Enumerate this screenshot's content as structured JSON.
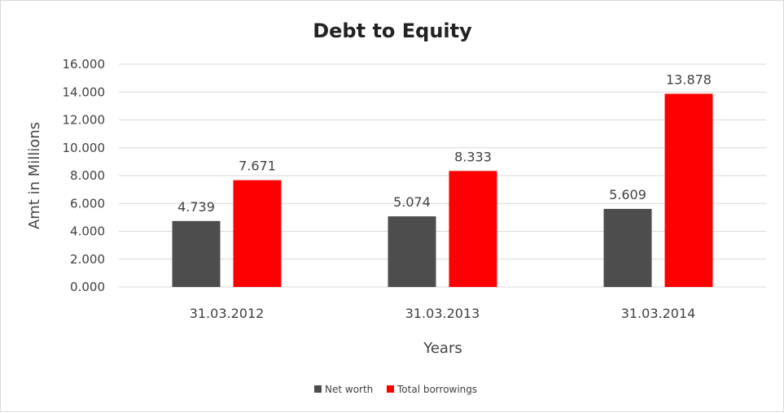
{
  "chart_data": {
    "type": "bar",
    "title": "Debt to Equity",
    "xlabel": "Years",
    "ylabel": "Amt in Millions",
    "categories": [
      "31.03.2012",
      "31.03.2013",
      "31.03.2014"
    ],
    "series": [
      {
        "name": "Net worth",
        "values": [
          4.739,
          5.074,
          5.609
        ],
        "color": "#4d4d4d",
        "labels": [
          "4.739",
          "5.074",
          "5.609"
        ]
      },
      {
        "name": "Total borrowings",
        "values": [
          7.671,
          8.333,
          13.878
        ],
        "color": "#ff0000",
        "labels": [
          "7.671",
          "8.333",
          "13.878"
        ]
      }
    ],
    "ylim": [
      0,
      16
    ],
    "yticks": [
      0,
      2,
      4,
      6,
      8,
      10,
      12,
      14,
      16
    ],
    "ytick_labels": [
      "0.000",
      "2.000",
      "4.000",
      "6.000",
      "8.000",
      "10.000",
      "12.000",
      "14.000",
      "16.000"
    ],
    "grid": true,
    "gridline_color": "#d9d9d9",
    "legend_position": "bottom"
  }
}
